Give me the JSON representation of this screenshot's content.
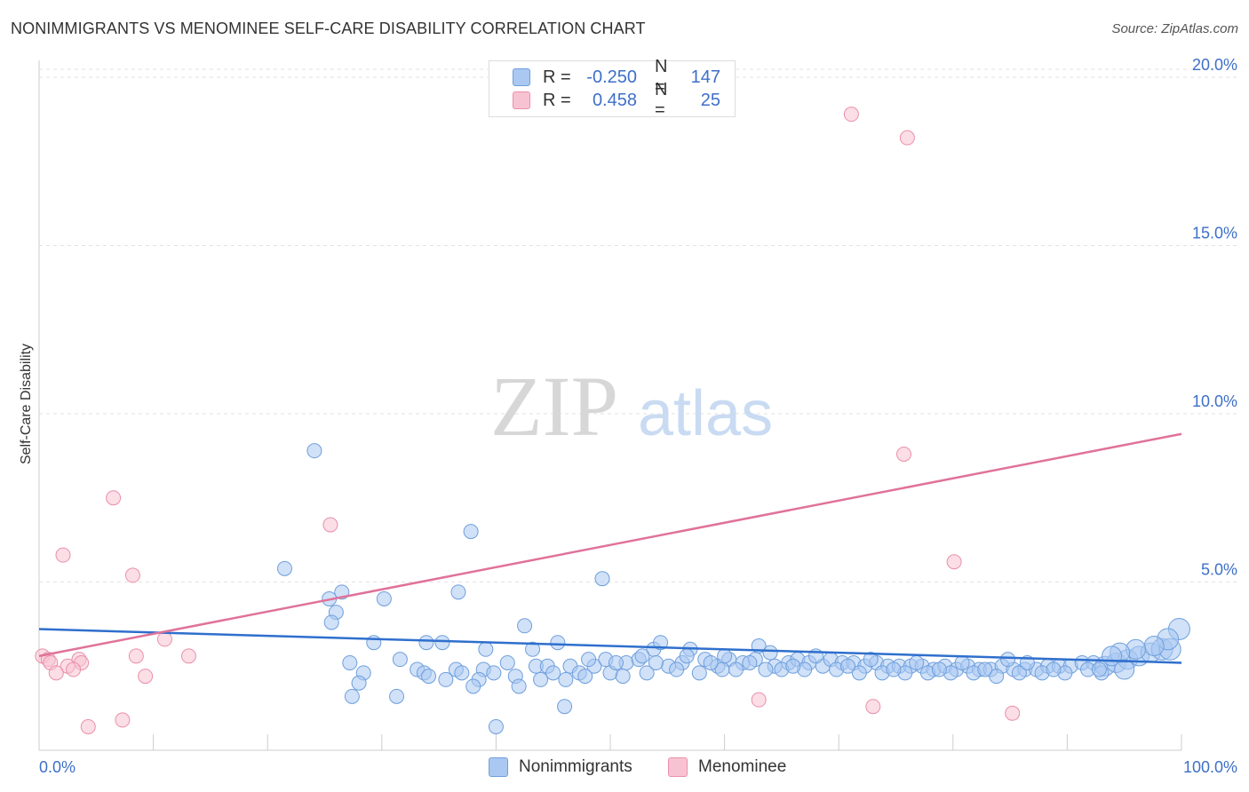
{
  "title": "NONIMMIGRANTS VS MENOMINEE SELF-CARE DISABILITY CORRELATION CHART",
  "source": "Source: ZipAtlas.com",
  "watermark": {
    "zip": "ZIP",
    "atlas": "atlas"
  },
  "legend": {
    "rows": [
      {
        "r_label": "R =",
        "r_value": "-0.250",
        "n_label": "N =",
        "n_value": "147",
        "color": "#aac8f2"
      },
      {
        "r_label": "R =",
        "r_value": "0.458",
        "n_label": "N =",
        "n_value": "25",
        "color": "#f7b8cb"
      }
    ]
  },
  "colors": {
    "nonimmigrants_fill": "#aac8f2",
    "nonimmigrants_stroke": "#6f9fdc",
    "nonimmigrants_line": "#2f6fcd",
    "menominee_fill": "#f7c3d2",
    "menominee_stroke": "#ea8fab",
    "menominee_line": "#e0729a",
    "tick_label": "#3e6fc8",
    "grid": "#e2e2e2"
  },
  "chart_data": {
    "type": "scatter",
    "title": "NONIMMIGRANTS VS MENOMINEE SELF-CARE DISABILITY CORRELATION CHART",
    "xlabel": "",
    "ylabel": "Self-Care Disability",
    "xlim": [
      0,
      100
    ],
    "ylim": [
      0,
      20.5
    ],
    "x_tick_labels": [
      {
        "value": 0,
        "label": "0.0%"
      },
      {
        "value": 100,
        "label": "100.0%"
      }
    ],
    "x_minor_ticks": [
      10,
      20,
      30,
      40,
      50,
      60,
      70,
      80,
      90,
      100
    ],
    "y_ticks": [
      {
        "value": 5,
        "label": "5.0%"
      },
      {
        "value": 10,
        "label": "10.0%"
      },
      {
        "value": 15,
        "label": "15.0%"
      },
      {
        "value": 20,
        "label": "20.0%"
      }
    ],
    "grid": true,
    "legend_position": "top-center",
    "series": [
      {
        "name": "Nonimmigrants",
        "r": -0.25,
        "n": 147,
        "trend": {
          "x": [
            0,
            100
          ],
          "y": [
            3.6,
            2.6
          ]
        },
        "points": [
          [
            24.1,
            8.9
          ],
          [
            37.8,
            6.5
          ],
          [
            21.5,
            5.4
          ],
          [
            49.3,
            5.1
          ],
          [
            26.5,
            4.7
          ],
          [
            36.7,
            4.7
          ],
          [
            25.4,
            4.5
          ],
          [
            30.2,
            4.5
          ],
          [
            26.0,
            4.1
          ],
          [
            25.6,
            3.8
          ],
          [
            42.5,
            3.7
          ],
          [
            29.3,
            3.2
          ],
          [
            33.9,
            3.2
          ],
          [
            35.3,
            3.2
          ],
          [
            45.4,
            3.2
          ],
          [
            39.1,
            3.0
          ],
          [
            43.2,
            3.0
          ],
          [
            53.8,
            3.0
          ],
          [
            54.4,
            3.2
          ],
          [
            57.0,
            3.0
          ],
          [
            63.0,
            3.1
          ],
          [
            31.6,
            2.7
          ],
          [
            27.2,
            2.6
          ],
          [
            33.1,
            2.4
          ],
          [
            36.5,
            2.4
          ],
          [
            38.9,
            2.4
          ],
          [
            41.0,
            2.6
          ],
          [
            43.5,
            2.5
          ],
          [
            44.5,
            2.5
          ],
          [
            45.0,
            2.3
          ],
          [
            46.5,
            2.5
          ],
          [
            47.3,
            2.3
          ],
          [
            48.6,
            2.5
          ],
          [
            50.0,
            2.3
          ],
          [
            51.4,
            2.6
          ],
          [
            52.5,
            2.7
          ],
          [
            55.1,
            2.5
          ],
          [
            56.3,
            2.6
          ],
          [
            58.3,
            2.7
          ],
          [
            59.4,
            2.5
          ],
          [
            60.4,
            2.7
          ],
          [
            61.6,
            2.6
          ],
          [
            62.7,
            2.7
          ],
          [
            64.4,
            2.5
          ],
          [
            65.6,
            2.6
          ],
          [
            66.4,
            2.7
          ],
          [
            67.4,
            2.6
          ],
          [
            68.6,
            2.5
          ],
          [
            69.3,
            2.7
          ],
          [
            70.3,
            2.6
          ],
          [
            71.3,
            2.6
          ],
          [
            72.3,
            2.5
          ],
          [
            73.3,
            2.6
          ],
          [
            74.3,
            2.5
          ],
          [
            75.3,
            2.5
          ],
          [
            76.3,
            2.5
          ],
          [
            77.3,
            2.5
          ],
          [
            78.3,
            2.4
          ],
          [
            79.3,
            2.5
          ],
          [
            80.3,
            2.4
          ],
          [
            81.3,
            2.5
          ],
          [
            82.3,
            2.4
          ],
          [
            83.3,
            2.4
          ],
          [
            84.3,
            2.5
          ],
          [
            85.3,
            2.4
          ],
          [
            86.3,
            2.4
          ],
          [
            87.3,
            2.4
          ],
          [
            88.3,
            2.5
          ],
          [
            89.3,
            2.5
          ],
          [
            90.3,
            2.5
          ],
          [
            91.3,
            2.6
          ],
          [
            92.3,
            2.6
          ],
          [
            93.3,
            2.5
          ],
          [
            94.3,
            2.6
          ],
          [
            95.3,
            2.7
          ],
          [
            96.3,
            2.8
          ],
          [
            97.3,
            2.9
          ],
          [
            98.3,
            3.0
          ],
          [
            99.0,
            3.0
          ],
          [
            99.8,
            3.6
          ],
          [
            98.8,
            3.3
          ],
          [
            97.6,
            3.1
          ],
          [
            96.0,
            3.0
          ],
          [
            94.6,
            2.9
          ],
          [
            93.9,
            2.8
          ],
          [
            28.4,
            2.3
          ],
          [
            33.7,
            2.3
          ],
          [
            37.0,
            2.3
          ],
          [
            35.6,
            2.1
          ],
          [
            34.1,
            2.2
          ],
          [
            28.0,
            2.0
          ],
          [
            38.5,
            2.1
          ],
          [
            39.8,
            2.3
          ],
          [
            41.7,
            2.2
          ],
          [
            43.9,
            2.1
          ],
          [
            46.1,
            2.1
          ],
          [
            47.8,
            2.2
          ],
          [
            51.1,
            2.2
          ],
          [
            53.2,
            2.3
          ],
          [
            55.8,
            2.4
          ],
          [
            57.8,
            2.3
          ],
          [
            59.8,
            2.4
          ],
          [
            61.0,
            2.4
          ],
          [
            63.6,
            2.4
          ],
          [
            65.0,
            2.4
          ],
          [
            67.0,
            2.4
          ],
          [
            69.8,
            2.4
          ],
          [
            71.8,
            2.3
          ],
          [
            73.8,
            2.3
          ],
          [
            75.8,
            2.3
          ],
          [
            77.8,
            2.3
          ],
          [
            79.8,
            2.3
          ],
          [
            81.8,
            2.3
          ],
          [
            83.8,
            2.2
          ],
          [
            85.8,
            2.3
          ],
          [
            87.8,
            2.3
          ],
          [
            89.8,
            2.3
          ],
          [
            91.8,
            2.4
          ],
          [
            93.0,
            2.3
          ],
          [
            95.0,
            2.4
          ],
          [
            86.5,
            2.6
          ],
          [
            84.8,
            2.7
          ],
          [
            80.8,
            2.6
          ],
          [
            76.8,
            2.6
          ],
          [
            72.8,
            2.7
          ],
          [
            68.0,
            2.8
          ],
          [
            64.0,
            2.9
          ],
          [
            60.0,
            2.8
          ],
          [
            56.7,
            2.8
          ],
          [
            52.8,
            2.8
          ],
          [
            49.6,
            2.7
          ],
          [
            48.1,
            2.7
          ],
          [
            50.5,
            2.6
          ],
          [
            54.0,
            2.6
          ],
          [
            58.8,
            2.6
          ],
          [
            62.2,
            2.6
          ],
          [
            66.0,
            2.5
          ],
          [
            70.8,
            2.5
          ],
          [
            74.8,
            2.4
          ],
          [
            78.8,
            2.4
          ],
          [
            82.8,
            2.4
          ],
          [
            88.8,
            2.4
          ],
          [
            92.8,
            2.4
          ],
          [
            42.0,
            1.9
          ],
          [
            38.0,
            1.9
          ],
          [
            27.4,
            1.6
          ],
          [
            31.3,
            1.6
          ],
          [
            46.0,
            1.3
          ],
          [
            40.0,
            0.7
          ]
        ]
      },
      {
        "name": "Menominee",
        "r": 0.458,
        "n": 25,
        "trend": {
          "x": [
            0,
            100
          ],
          "y": [
            2.8,
            9.4
          ]
        },
        "points": [
          [
            71.1,
            18.9
          ],
          [
            76.0,
            18.2
          ],
          [
            75.7,
            8.8
          ],
          [
            6.5,
            7.5
          ],
          [
            25.5,
            6.7
          ],
          [
            2.1,
            5.8
          ],
          [
            80.1,
            5.6
          ],
          [
            8.2,
            5.2
          ],
          [
            11.0,
            3.3
          ],
          [
            8.5,
            2.8
          ],
          [
            13.1,
            2.8
          ],
          [
            0.3,
            2.8
          ],
          [
            0.8,
            2.7
          ],
          [
            1.0,
            2.6
          ],
          [
            3.5,
            2.7
          ],
          [
            3.7,
            2.6
          ],
          [
            2.5,
            2.5
          ],
          [
            3.0,
            2.4
          ],
          [
            1.5,
            2.3
          ],
          [
            9.3,
            2.2
          ],
          [
            63.0,
            1.5
          ],
          [
            73.0,
            1.3
          ],
          [
            85.2,
            1.1
          ],
          [
            7.3,
            0.9
          ],
          [
            4.3,
            0.7
          ]
        ]
      }
    ]
  },
  "bottom_legend": [
    {
      "label": "Nonimmigrants"
    },
    {
      "label": "Menominee"
    }
  ]
}
